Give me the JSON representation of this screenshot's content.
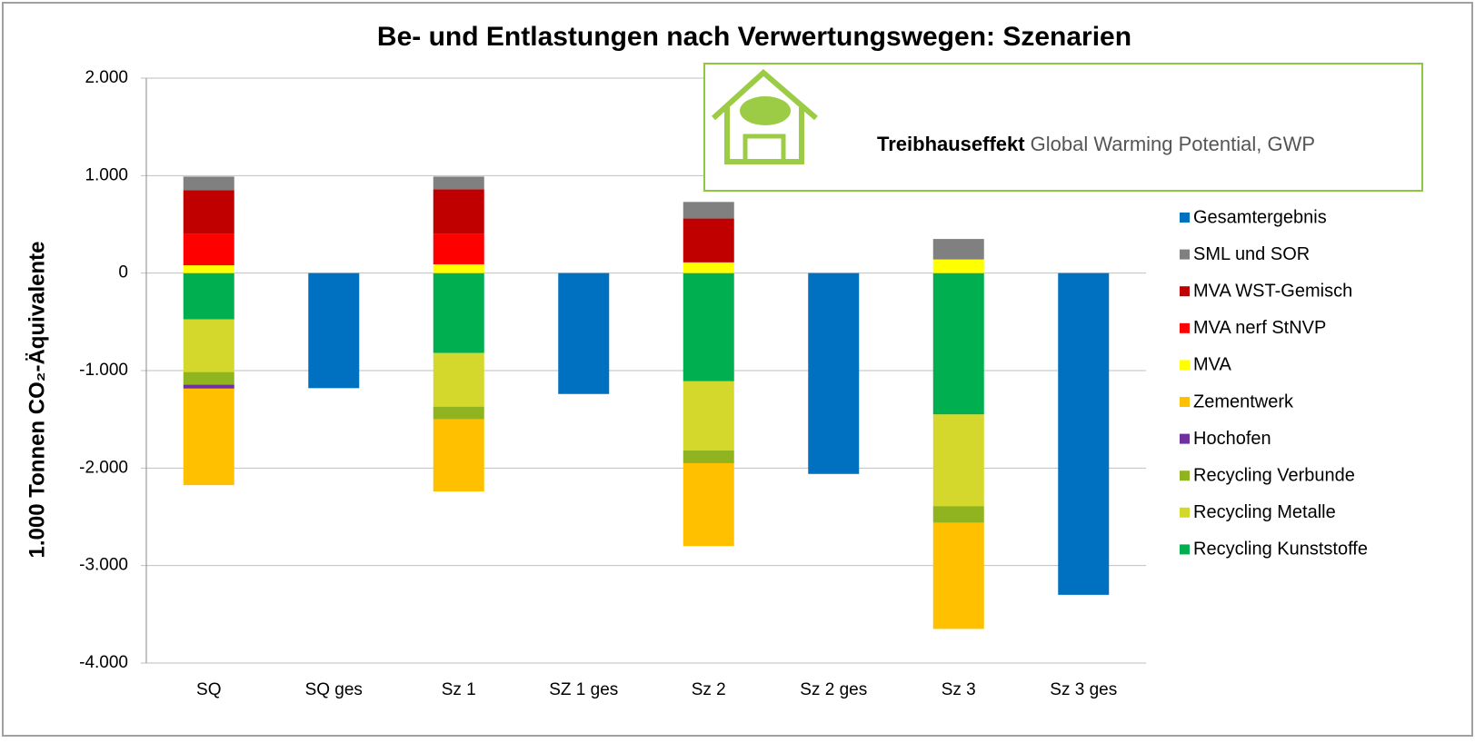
{
  "chart_data": {
    "type": "stacked_bar",
    "title": "Be- und Entlastungen nach Verwertungswegen: Szenarien",
    "y_label": "1.000 Tonnen CO₂-Äquivalente",
    "logo_title": "Treibhauseffekt",
    "logo_text": "Global Warming Potential, GWP",
    "categories": [
      "SQ",
      "SQ ges",
      "Sz 1",
      "SZ 1 ges",
      "Sz 2",
      "Sz 2 ges",
      "Sz 3",
      "Sz 3 ges"
    ],
    "ylim": [
      -4000,
      2000
    ],
    "yticks": [
      {
        "value": 2000,
        "label": "2.000"
      },
      {
        "value": 1000,
        "label": "1.000"
      },
      0,
      {
        "value": -1000,
        "label": "-1.000"
      },
      {
        "value": -2000,
        "label": "-2.000"
      },
      {
        "value": -3000,
        "label": "-3.000"
      },
      {
        "value": -4000,
        "label": "-4.000"
      }
    ],
    "grid": true,
    "legend": "right",
    "series": [
      {
        "name": "Gesamtergebnis",
        "color": "#0070c0",
        "values": [
          null,
          -1180,
          null,
          -1240,
          null,
          -2060,
          null,
          -3300
        ]
      },
      {
        "name": "SML und SOR",
        "color": "#808080",
        "values": [
          140,
          null,
          130,
          null,
          170,
          null,
          210,
          null
        ]
      },
      {
        "name": "MVA WST-Gemisch",
        "color": "#c00000",
        "values": [
          450,
          null,
          460,
          null,
          450,
          null,
          null,
          null
        ]
      },
      {
        "name": "MVA nerf StNVP",
        "color": "#ff0000",
        "values": [
          320,
          null,
          310,
          null,
          null,
          null,
          null,
          null
        ]
      },
      {
        "name": "MVA",
        "color": "#ffff00",
        "values": [
          80,
          null,
          90,
          null,
          110,
          null,
          140,
          null
        ]
      },
      {
        "name": "Zementwerk",
        "color": "#ffc000",
        "values": [
          -990,
          null,
          -740,
          null,
          -850,
          null,
          -1090,
          null
        ]
      },
      {
        "name": "Hochofen",
        "color": "#7030a0",
        "values": [
          -40,
          null,
          null,
          null,
          null,
          null,
          null,
          null
        ]
      },
      {
        "name": "Recycling Verbunde",
        "color": "#8fb420",
        "values": [
          -130,
          null,
          -130,
          null,
          -130,
          null,
          -170,
          null
        ]
      },
      {
        "name": "Recycling Metalle",
        "color": "#d4d82c",
        "values": [
          -540,
          null,
          -550,
          null,
          -710,
          null,
          -940,
          null
        ]
      },
      {
        "name": "Recycling Kunststoffe",
        "color": "#00b050",
        "values": [
          -475,
          null,
          -820,
          null,
          -1110,
          null,
          -1450,
          null
        ]
      }
    ]
  }
}
